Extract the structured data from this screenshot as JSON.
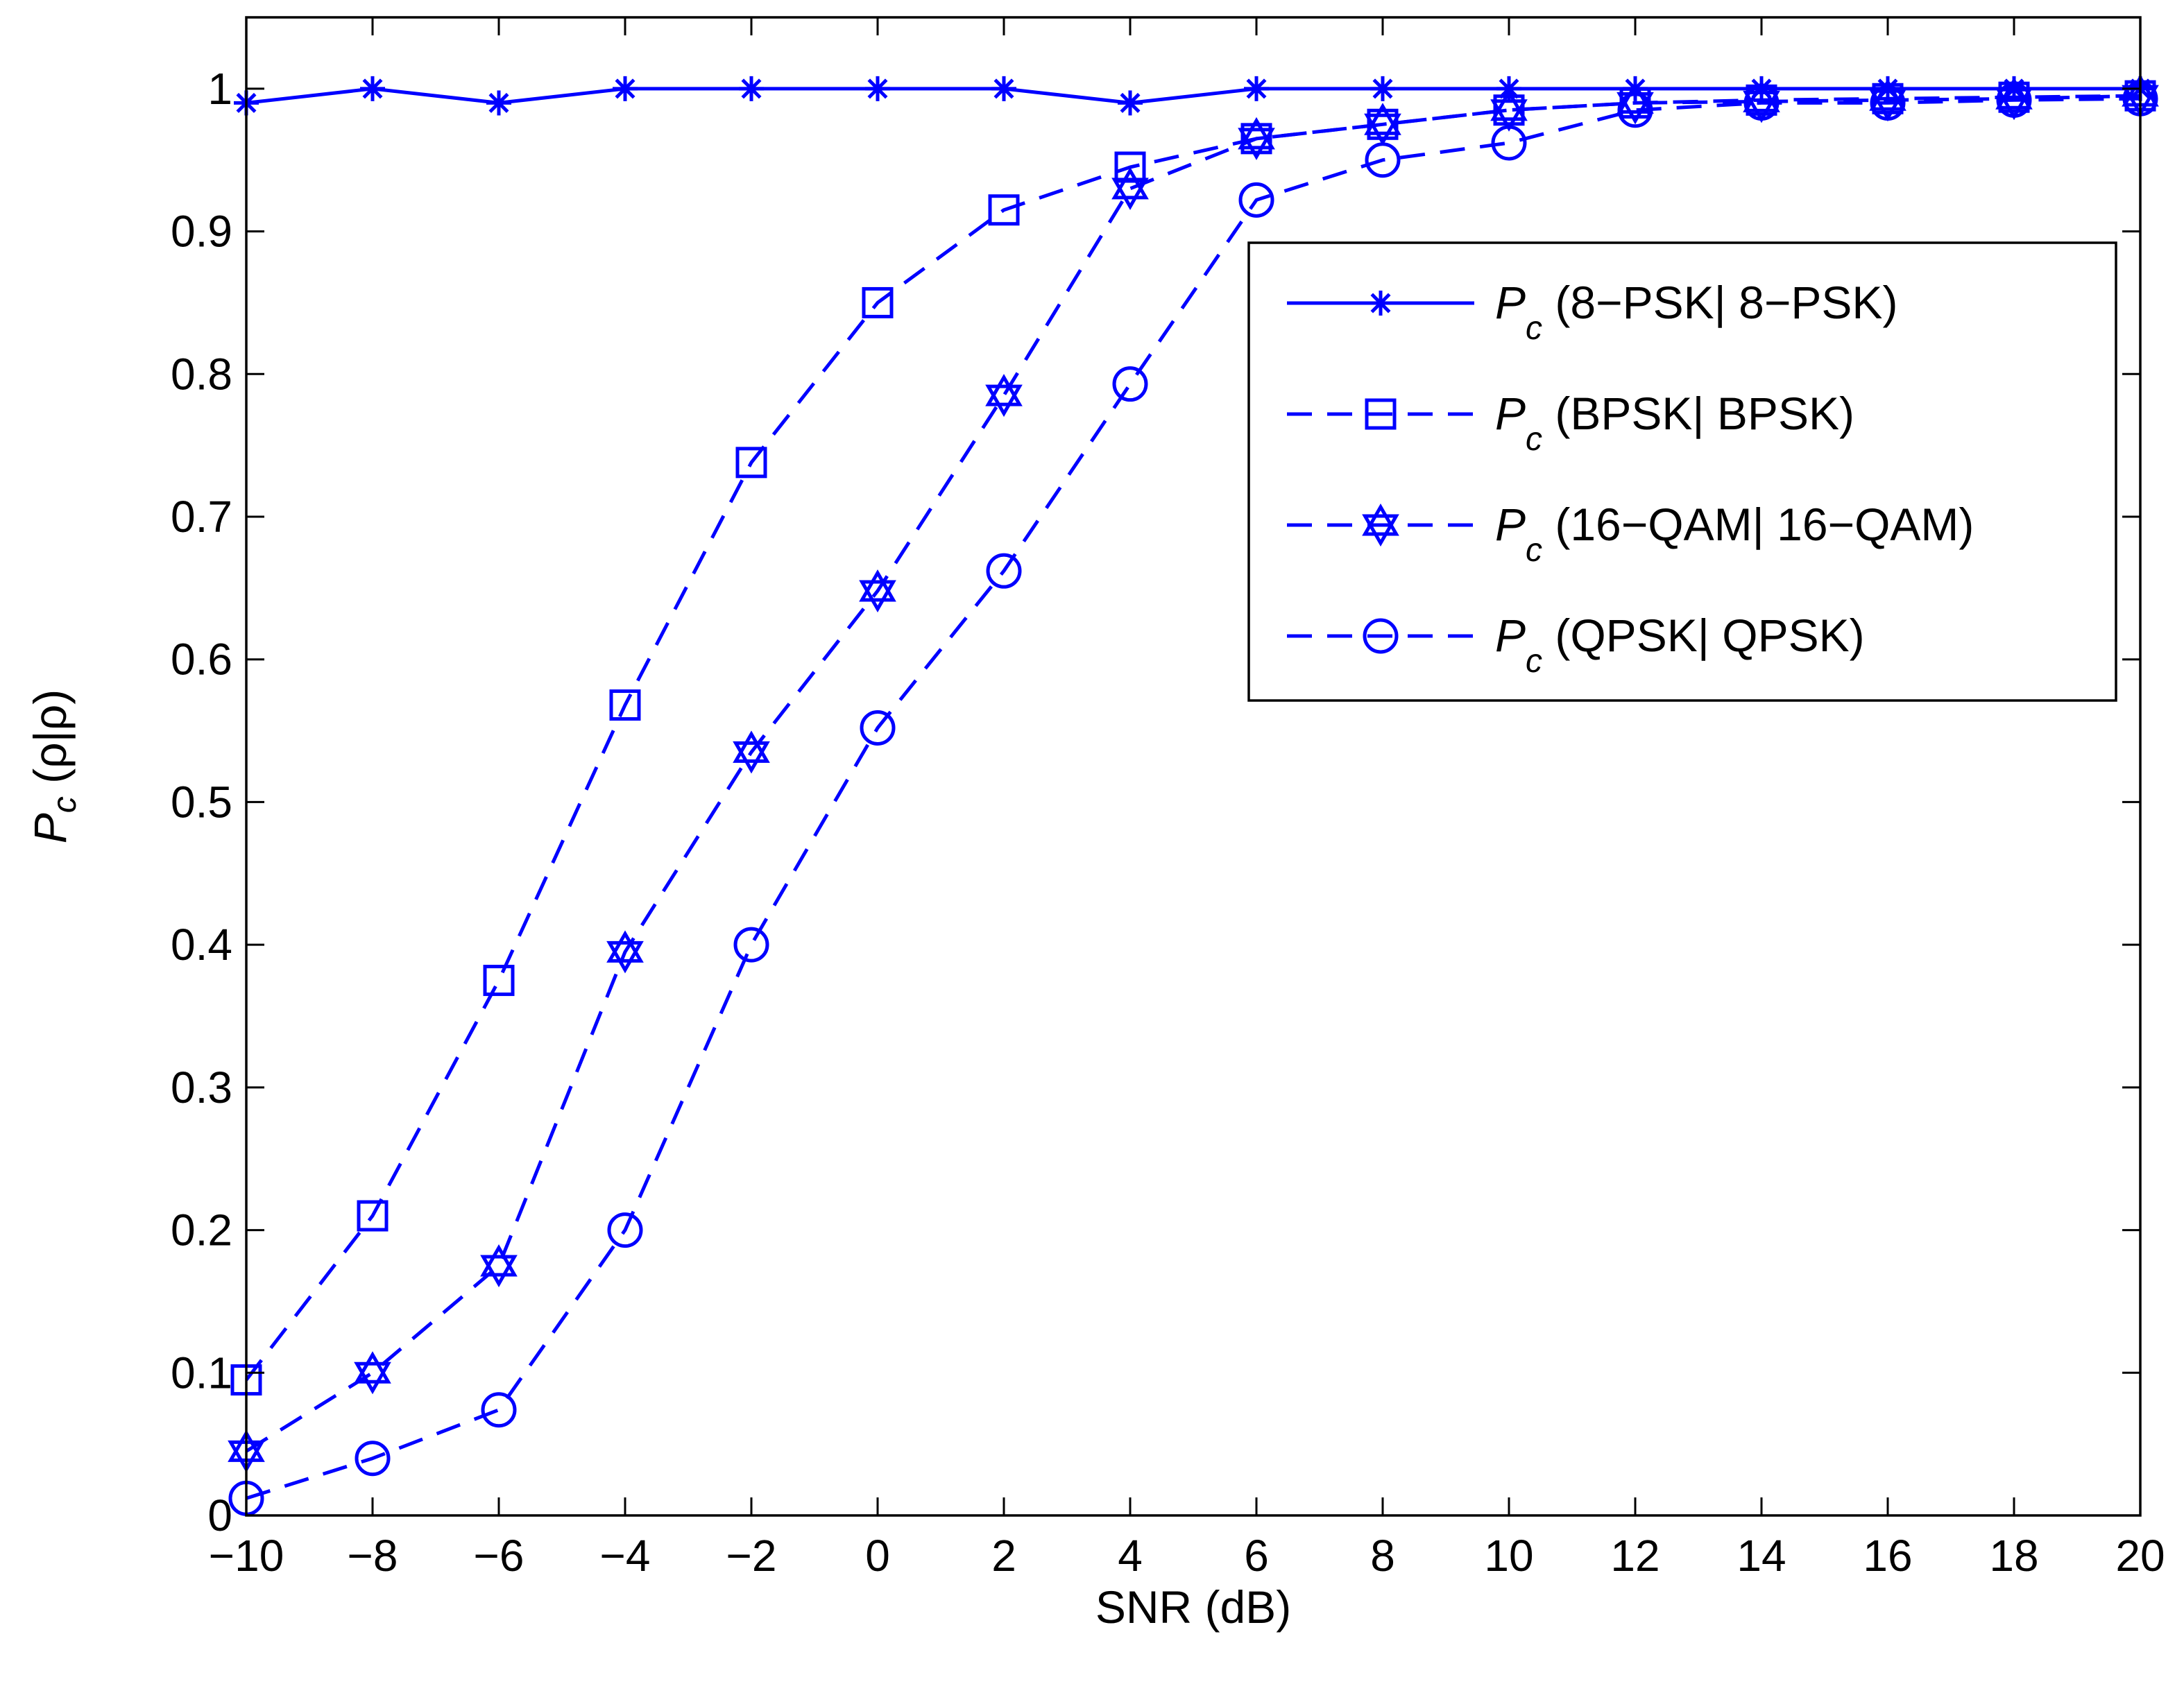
{
  "chart_data": {
    "type": "line",
    "title": "",
    "xlabel": "SNR (dB)",
    "ylabel": {
      "main": "P",
      "sub": "c",
      "rest": " (ρ|ρ)"
    },
    "xlim": [
      -10,
      20
    ],
    "ylim": [
      0,
      1.05
    ],
    "xticks": [
      -10,
      -8,
      -6,
      -4,
      -2,
      0,
      2,
      4,
      6,
      8,
      10,
      12,
      14,
      16,
      18,
      20
    ],
    "xtick_labels": [
      "−10",
      "−8",
      "−6",
      "−4",
      "−2",
      "0",
      "2",
      "4",
      "6",
      "8",
      "10",
      "12",
      "14",
      "16",
      "18",
      "20"
    ],
    "yticks": [
      0,
      0.1,
      0.2,
      0.3,
      0.4,
      0.5,
      0.6,
      0.7,
      0.8,
      0.9,
      1
    ],
    "ytick_labels": [
      "0",
      "0.1",
      "0.2",
      "0.3",
      "0.4",
      "0.5",
      "0.6",
      "0.7",
      "0.8",
      "0.9",
      "1"
    ],
    "grid": false,
    "legend_position": "top-right",
    "line_color": "#0000ff",
    "x": [
      -10,
      -8,
      -6,
      -4,
      -2,
      0,
      2,
      4,
      6,
      8,
      10,
      12,
      14,
      16,
      18,
      20
    ],
    "series": [
      {
        "name": "Pc (8-PSK| 8-PSK)",
        "legend_prefix": "P",
        "legend_sub": "c",
        "legend_rest": " (8−PSK| 8−PSK)",
        "line_style": "solid",
        "marker": "asterisk",
        "values": [
          0.99,
          1.0,
          0.99,
          1.0,
          1.0,
          1.0,
          1.0,
          0.99,
          1.0,
          1.0,
          1.0,
          1.0,
          1.0,
          1.0,
          1.0,
          1.0
        ]
      },
      {
        "name": "Pc (BPSK| BPSK)",
        "legend_prefix": "P",
        "legend_sub": "c",
        "legend_rest": " (BPSK| BPSK)",
        "line_style": "dashed",
        "marker": "square",
        "values": [
          0.095,
          0.21,
          0.375,
          0.568,
          0.738,
          0.85,
          0.915,
          0.945,
          0.965,
          0.975,
          0.985,
          0.99,
          0.992,
          0.993,
          0.994,
          0.995
        ]
      },
      {
        "name": "Pc (16-QAM| 16-QAM)",
        "legend_prefix": "P",
        "legend_sub": "c",
        "legend_rest": " (16−QAM| 16−QAM)",
        "line_style": "dashed",
        "marker": "hexagram",
        "values": [
          0.045,
          0.1,
          0.175,
          0.395,
          0.535,
          0.648,
          0.785,
          0.93,
          0.965,
          0.975,
          0.985,
          0.99,
          0.991,
          0.992,
          0.993,
          0.995
        ]
      },
      {
        "name": "Pc (QPSK| QPSK)",
        "legend_prefix": "P",
        "legend_sub": "c",
        "legend_rest": " (QPSK| QPSK)",
        "line_style": "dashed",
        "marker": "circle",
        "values": [
          0.012,
          0.04,
          0.074,
          0.2,
          0.4,
          0.552,
          0.662,
          0.793,
          0.922,
          0.95,
          0.962,
          0.985,
          0.99,
          0.99,
          0.992,
          0.993
        ]
      }
    ]
  }
}
